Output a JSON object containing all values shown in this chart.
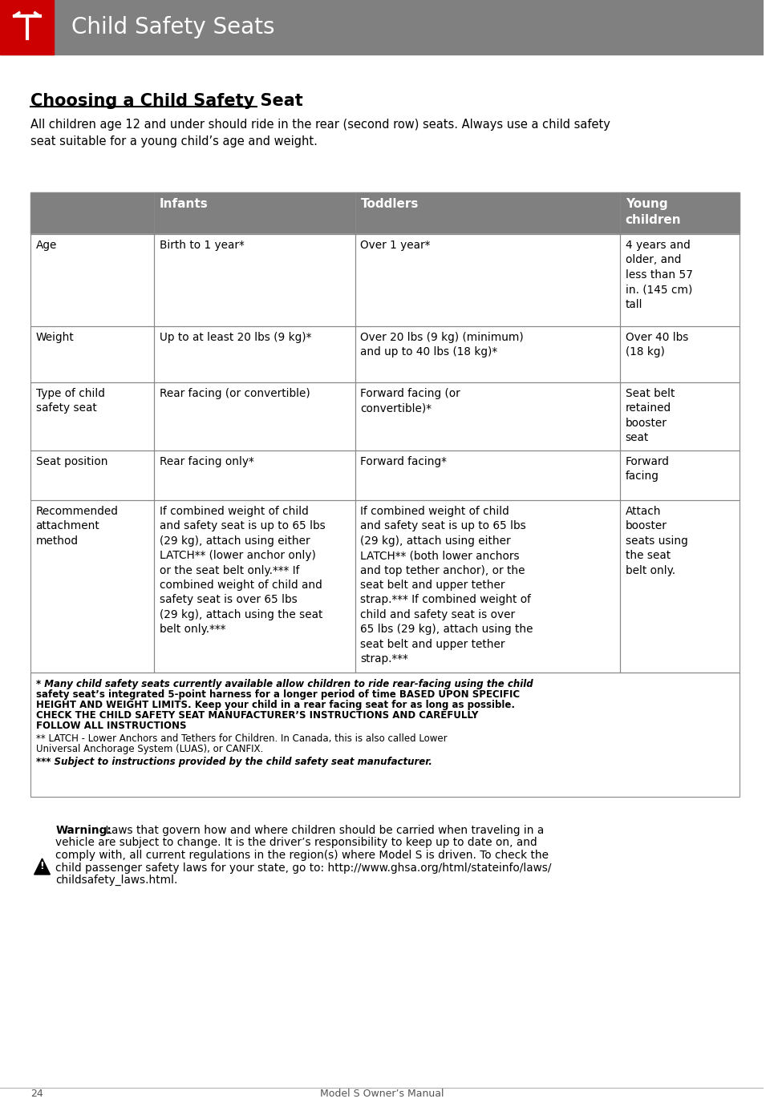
{
  "page_title": "Child Safety Seats",
  "section_title": "Choosing a Child Safety Seat",
  "intro_text": "All children age 12 and under should ride in the rear (second row) seats. Always use a child safety\nseat suitable for a young child’s age and weight.",
  "header_bg": "#808080",
  "header_text_color": "#ffffff",
  "tesla_red": "#cc0000",
  "body_bg": "#ffffff",
  "cell_border": "#888888",
  "table_header_row": [
    "",
    "Infants",
    "Toddlers",
    "Young\nchildren"
  ],
  "table_rows": [
    {
      "label": "Age",
      "infants": "Birth to 1 year*",
      "toddlers": "Over 1 year*",
      "young": "4 years and\nolder, and\nless than 57\nin. (145 cm)\ntall"
    },
    {
      "label": "Weight",
      "infants": "Up to at least 20 lbs (9 kg)*",
      "toddlers": "Over 20 lbs (9 kg) (minimum)\nand up to 40 lbs (18 kg)*",
      "young": "Over 40 lbs\n(18 kg)"
    },
    {
      "label": "Type of child\nsafety seat",
      "infants": "Rear facing (or convertible)",
      "toddlers": "Forward facing (or\nconvertible)*",
      "young": "Seat belt\nretained\nbooster\nseat"
    },
    {
      "label": "Seat position",
      "infants": "Rear facing only*",
      "toddlers": "Forward facing*",
      "young": "Forward\nfacing"
    },
    {
      "label": "Recommended\nattachment\nmethod",
      "infants": "If combined weight of child\nand safety seat is up to 65 lbs\n(29 kg), attach using either\nLATCH** (lower anchor only)\nor the seat belt only.*** If\ncombined weight of child and\nsafety seat is over 65 lbs\n(29 kg), attach using the seat\nbelt only.***",
      "toddlers": "If combined weight of child\nand safety seat is up to 65 lbs\n(29 kg), attach using either\nLATCH** (both lower anchors\nand top tether anchor), or the\nseat belt and upper tether\nstrap.*** If combined weight of\nchild and safety seat is over\n65 lbs (29 kg), attach using the\nseat belt and upper tether\nstrap.***",
      "young": "Attach\nbooster\nseats using\nthe seat\nbelt only."
    }
  ],
  "footnote_box_text": "* Many child safety seats currently available allow children to ride rear-facing using the child\nsafety seat’s integrated 5-point harness for a longer period of time BASED UPON SPECIFIC\nHEIGHT AND WEIGHT LIMITS. Keep your child in a rear facing seat for as long as possible.\nCHECK THE CHILD SAFETY SEAT MANUFACTURER’S INSTRUCTIONS AND CAREFULLY\nFOLLOW ALL INSTRUCTIONS\n\n** LATCH - Lower Anchors and Tethers for Children. In Canada, this is also called Lower\nUniversal Anchorage System (LUAS), or CANFIX.\n\n*** Subject to instructions provided by the child safety seat manufacturer.",
  "warning_text_bold": "Warning:",
  "warning_text": " Laws that govern how and where children should be carried when traveling in a\nvehicle are subject to change. It is the driver’s responsibility to keep up to date on, and\ncomply with, all current regulations in the region(s) where Model S is driven. To check the\nchild passenger safety laws for your state, go to: http://www.ghsa.org/html/stateinfo/laws/\nchildsafety_laws.html.",
  "page_number": "24",
  "page_footer": "Model S Owner’s Manual"
}
